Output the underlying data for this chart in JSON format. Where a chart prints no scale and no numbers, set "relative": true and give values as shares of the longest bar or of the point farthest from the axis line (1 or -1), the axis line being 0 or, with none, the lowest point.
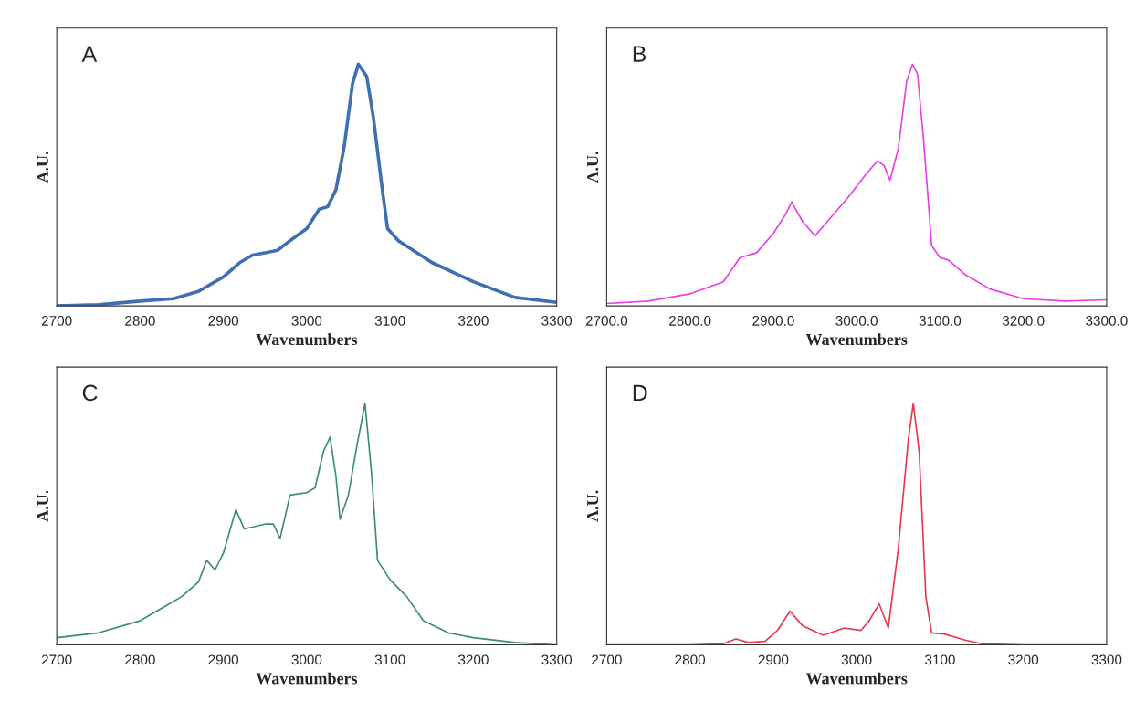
{
  "chart_data": [
    {
      "type": "line",
      "relative": true,
      "annotations": [
        "A"
      ],
      "xlabel": "Wavenumbers",
      "ylabel": "A.U.",
      "xlim": [
        2700,
        3300
      ],
      "xticks": [
        2700,
        2800,
        2900,
        3000,
        3100,
        3200,
        3300
      ],
      "grid": false,
      "tick_labels": "x",
      "series": [
        {
          "color": "#3f6fae",
          "x": [
            2700,
            2750,
            2800,
            2840,
            2870,
            2900,
            2920,
            2935,
            2950,
            2965,
            2980,
            3000,
            3015,
            3025,
            3035,
            3045,
            3055,
            3062,
            3072,
            3080,
            3090,
            3097,
            3110,
            3150,
            3200,
            3250,
            3300
          ],
          "values": [
            0,
            0.005,
            0.02,
            0.03,
            0.06,
            0.12,
            0.18,
            0.21,
            0.22,
            0.23,
            0.27,
            0.32,
            0.4,
            0.41,
            0.48,
            0.66,
            0.92,
            1.0,
            0.95,
            0.78,
            0.5,
            0.32,
            0.27,
            0.18,
            0.1,
            0.035,
            0.015
          ]
        }
      ]
    },
    {
      "type": "line",
      "relative": true,
      "annotations": [
        "B"
      ],
      "xlabel": "Wavenumbers",
      "ylabel": "A.U.",
      "xlim": [
        2700,
        3300
      ],
      "xticks": [
        {
          "value": 2700,
          "label": "2700.0"
        },
        {
          "value": 2800,
          "label": "2800.0"
        },
        {
          "value": 2900,
          "label": "2900.0"
        },
        {
          "value": 3000,
          "label": "3000.0"
        },
        {
          "value": 3100,
          "label": "3100.0"
        },
        {
          "value": 3200,
          "label": "3200.0"
        },
        {
          "value": 3300,
          "label": "3300.0"
        }
      ],
      "grid": false,
      "tick_labels": "x",
      "series": [
        {
          "color": "#e83ee8",
          "x": [
            2700,
            2750,
            2800,
            2840,
            2860,
            2880,
            2900,
            2915,
            2922,
            2935,
            2950,
            2970,
            2990,
            3010,
            3025,
            3033,
            3040,
            3050,
            3060,
            3067,
            3073,
            3080,
            3090,
            3100,
            3110,
            3130,
            3160,
            3200,
            3250,
            3300
          ],
          "values": [
            0.01,
            0.02,
            0.05,
            0.1,
            0.2,
            0.22,
            0.3,
            0.38,
            0.43,
            0.35,
            0.29,
            0.37,
            0.45,
            0.54,
            0.6,
            0.58,
            0.52,
            0.65,
            0.93,
            1.0,
            0.96,
            0.7,
            0.25,
            0.2,
            0.19,
            0.13,
            0.07,
            0.03,
            0.02,
            0.025
          ]
        }
      ]
    },
    {
      "type": "line",
      "relative": true,
      "annotations": [
        "C"
      ],
      "xlabel": "Wavenumbers",
      "ylabel": "A.U.",
      "xlim": [
        2700,
        3300
      ],
      "xticks": [
        2700,
        2800,
        2900,
        3000,
        3100,
        3200,
        3300
      ],
      "grid": false,
      "tick_labels": "x",
      "series": [
        {
          "color": "#3c8c78",
          "x": [
            2700,
            2750,
            2800,
            2830,
            2850,
            2870,
            2880,
            2890,
            2900,
            2915,
            2925,
            2950,
            2960,
            2968,
            2980,
            3000,
            3010,
            3020,
            3028,
            3035,
            3040,
            3050,
            3060,
            3070,
            3078,
            3085,
            3100,
            3120,
            3140,
            3170,
            3200,
            3250,
            3300
          ],
          "values": [
            0.03,
            0.05,
            0.1,
            0.16,
            0.2,
            0.26,
            0.35,
            0.31,
            0.38,
            0.56,
            0.48,
            0.5,
            0.5,
            0.44,
            0.62,
            0.63,
            0.65,
            0.8,
            0.86,
            0.7,
            0.52,
            0.62,
            0.82,
            1.0,
            0.7,
            0.35,
            0.27,
            0.2,
            0.1,
            0.05,
            0.03,
            0.01,
            0.0
          ]
        }
      ]
    },
    {
      "type": "line",
      "relative": true,
      "annotations": [
        "D"
      ],
      "xlabel": "Wavenumbers",
      "ylabel": "A.U.",
      "xlim": [
        2700,
        3300
      ],
      "xticks": [
        2700,
        2800,
        2900,
        3000,
        3100,
        3200,
        3300
      ],
      "grid": false,
      "tick_labels": "x",
      "series": [
        {
          "color": "#e8384f",
          "x": [
            2700,
            2800,
            2840,
            2855,
            2870,
            2890,
            2905,
            2920,
            2935,
            2960,
            2985,
            3005,
            3015,
            3027,
            3038,
            3050,
            3062,
            3068,
            3075,
            3083,
            3090,
            3105,
            3130,
            3150,
            3200,
            3300
          ],
          "values": [
            0,
            0,
            0.005,
            0.025,
            0.01,
            0.015,
            0.06,
            0.14,
            0.08,
            0.04,
            0.07,
            0.06,
            0.1,
            0.17,
            0.07,
            0.4,
            0.85,
            1.0,
            0.8,
            0.2,
            0.05,
            0.045,
            0.02,
            0.005,
            0,
            0
          ]
        }
      ]
    }
  ]
}
